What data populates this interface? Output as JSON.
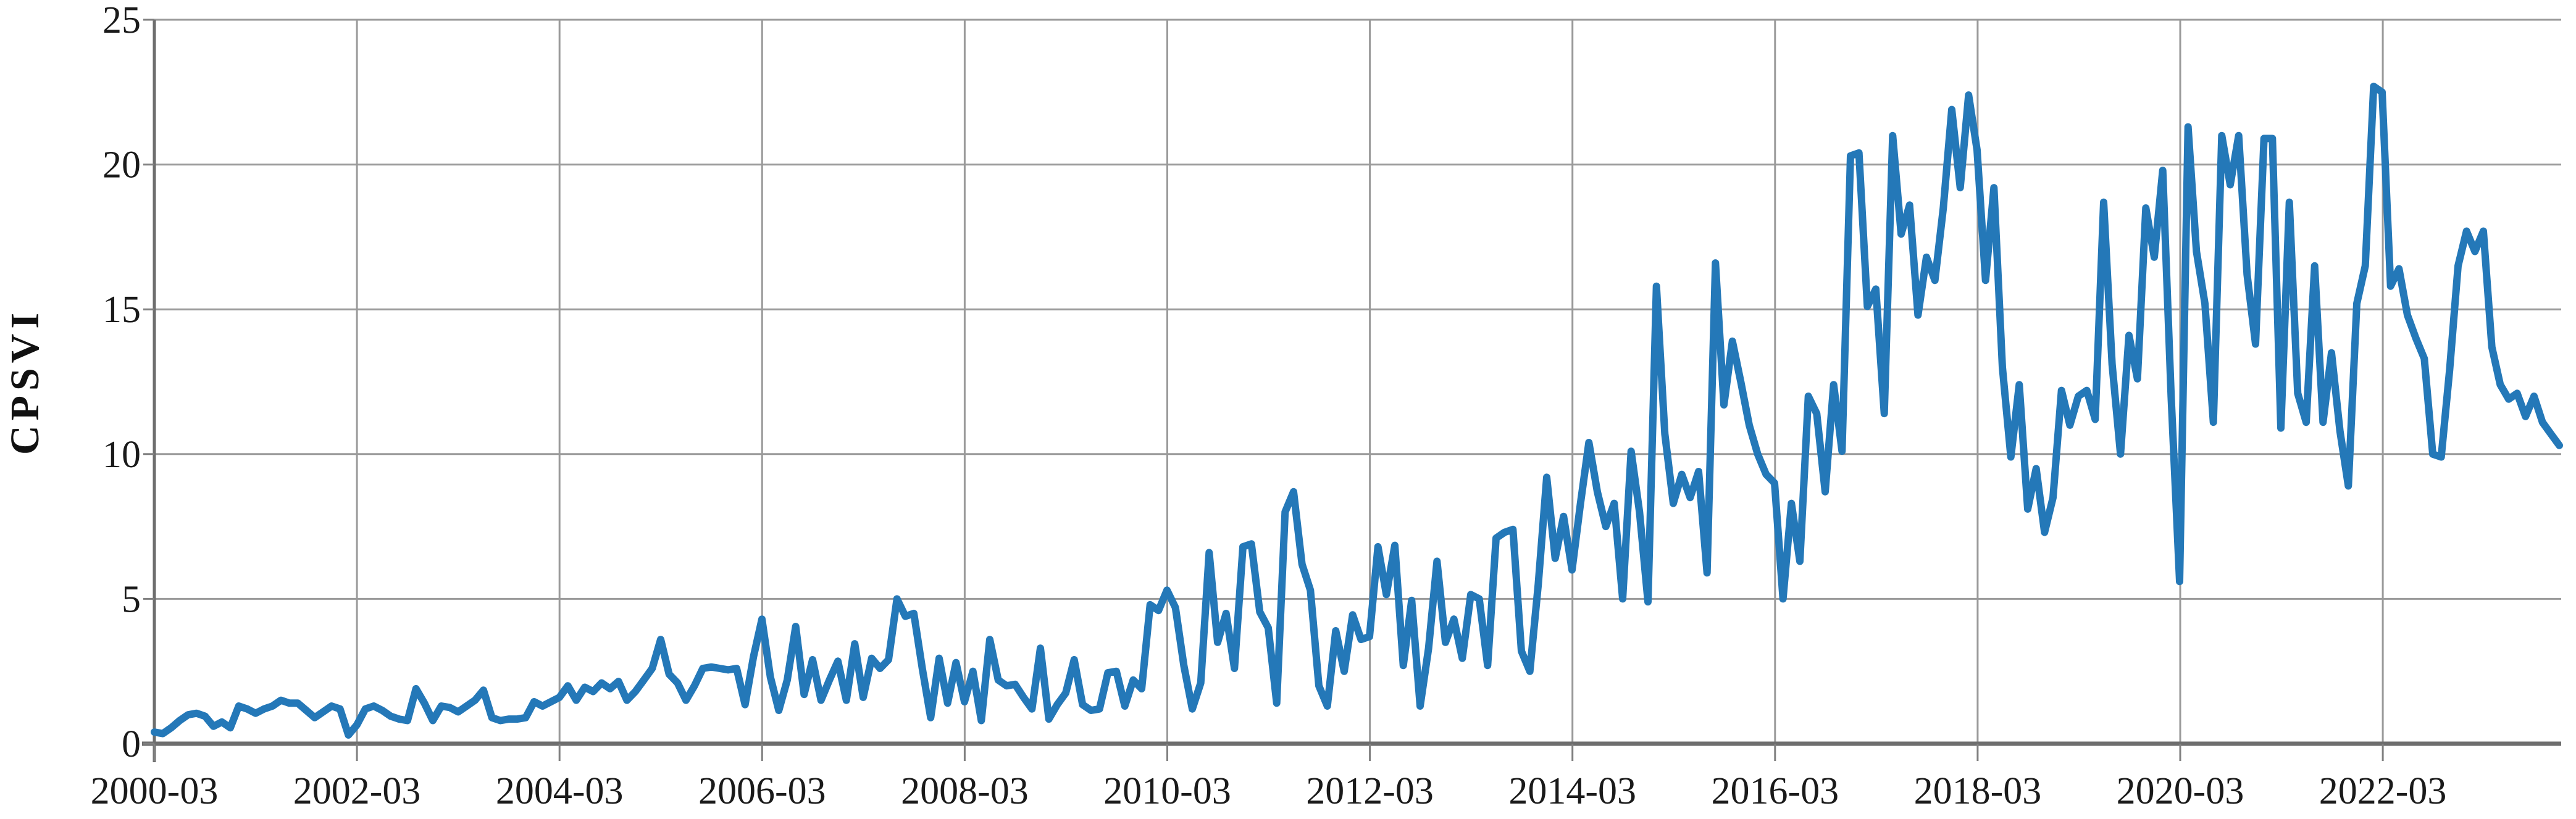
{
  "page": {
    "background_color": "#ffffff"
  },
  "style": {
    "line_color": "#2478b8",
    "grid_color": "#9a9a9a",
    "axis_color": "#6e6e6e",
    "tick_color": "#808080",
    "text_color": "#1a1a1a"
  },
  "chart_data": {
    "type": "line",
    "title": "",
    "xlabel": "",
    "ylabel": "CPSVI",
    "ylim": [
      0,
      25
    ],
    "y_tick_labels": [
      "0",
      "5",
      "10",
      "15",
      "20",
      "25"
    ],
    "x_tick_labels": [
      "2000-03",
      "2002-03",
      "2004-03",
      "2006-03",
      "2008-03",
      "2010-03",
      "2012-03",
      "2014-03",
      "2016-03",
      "2018-03",
      "2020-03",
      "2022-03"
    ],
    "x_start": "2000-03",
    "x_end": "2023-12",
    "x_interval_months": 1,
    "n_points": 286,
    "grid": "both",
    "legend_position": "none",
    "series": [
      {
        "name": "CPSVI",
        "color": "#2478b8",
        "values": [
          0.4,
          0.35,
          0.55,
          0.8,
          1.0,
          1.05,
          0.95,
          0.6,
          0.75,
          0.55,
          1.3,
          1.2,
          1.05,
          1.2,
          1.3,
          1.5,
          1.4,
          1.4,
          1.15,
          0.9,
          1.1,
          1.3,
          1.2,
          0.3,
          0.65,
          1.2,
          1.3,
          1.15,
          0.95,
          0.85,
          0.8,
          1.9,
          1.4,
          0.8,
          1.3,
          1.25,
          1.1,
          1.3,
          1.5,
          1.85,
          0.9,
          0.8,
          0.85,
          0.85,
          0.9,
          1.45,
          1.3,
          1.45,
          1.6,
          2.0,
          1.5,
          1.95,
          1.8,
          2.1,
          1.9,
          2.15,
          1.5,
          1.8,
          2.2,
          2.6,
          3.6,
          2.4,
          2.1,
          1.5,
          2.0,
          2.6,
          2.65,
          2.6,
          2.55,
          2.6,
          1.35,
          3.0,
          4.3,
          2.3,
          1.15,
          2.2,
          4.05,
          1.7,
          2.9,
          1.5,
          2.2,
          2.85,
          1.5,
          3.45,
          1.6,
          2.95,
          2.6,
          2.9,
          5.0,
          4.4,
          4.5,
          2.6,
          0.9,
          2.95,
          1.4,
          2.8,
          1.45,
          2.5,
          0.8,
          3.6,
          2.2,
          2.0,
          2.05,
          1.6,
          1.2,
          3.3,
          0.85,
          1.35,
          1.75,
          2.9,
          1.35,
          1.15,
          1.2,
          2.45,
          2.5,
          1.3,
          2.2,
          1.9,
          4.8,
          4.6,
          5.3,
          4.7,
          2.7,
          1.2,
          2.1,
          6.6,
          3.5,
          4.5,
          2.6,
          6.8,
          6.9,
          4.55,
          4.0,
          1.4,
          8.0,
          8.7,
          6.2,
          5.3,
          2.0,
          1.3,
          3.9,
          2.5,
          4.45,
          3.6,
          3.7,
          6.8,
          5.15,
          6.85,
          2.7,
          4.95,
          1.3,
          3.3,
          6.3,
          3.5,
          4.3,
          2.95,
          5.15,
          5.0,
          2.7,
          7.1,
          7.3,
          7.4,
          3.2,
          2.5,
          5.5,
          9.2,
          6.4,
          7.85,
          6.0,
          8.3,
          10.4,
          8.7,
          7.5,
          8.3,
          5.0,
          10.1,
          8.0,
          4.9,
          15.8,
          10.7,
          8.3,
          9.3,
          8.5,
          9.4,
          5.9,
          16.6,
          11.7,
          13.9,
          12.5,
          11.0,
          10.0,
          9.3,
          9.0,
          5.0,
          8.3,
          6.3,
          12.0,
          11.4,
          8.7,
          12.4,
          10.1,
          20.3,
          20.4,
          15.1,
          15.7,
          11.4,
          21.0,
          17.6,
          18.6,
          14.8,
          16.8,
          16.0,
          18.5,
          21.9,
          19.2,
          22.4,
          20.5,
          16.0,
          19.2,
          13.0,
          9.9,
          12.4,
          8.1,
          9.5,
          7.3,
          8.5,
          12.2,
          11.0,
          12.0,
          12.2,
          11.2,
          18.7,
          13.1,
          10.0,
          14.1,
          12.6,
          18.5,
          16.8,
          19.8,
          12.0,
          5.6,
          21.3,
          17.0,
          15.2,
          11.1,
          21.0,
          19.3,
          21.0,
          16.2,
          13.8,
          20.9,
          20.9,
          10.9,
          18.7,
          12.1,
          11.1,
          16.5,
          11.1,
          13.5,
          10.8,
          8.9,
          15.2,
          16.5,
          22.7,
          22.5,
          15.8,
          16.4,
          14.8,
          14.0,
          13.3,
          10.0,
          9.9,
          12.9,
          16.5,
          17.7,
          17.0,
          17.7,
          13.7,
          12.4,
          11.9,
          12.1,
          11.3,
          12.0,
          11.1,
          10.7,
          10.3
        ]
      }
    ],
    "layout": {
      "plot_left": 250,
      "plot_right": 4148,
      "plot_top": 32,
      "plot_bottom": 1205,
      "x_tick_spacing_px": 328.1,
      "x_label_baseline": 1302,
      "y_label_right_edge": 228,
      "y_title_center_x": 62,
      "y_title_center_y": 618
    }
  }
}
